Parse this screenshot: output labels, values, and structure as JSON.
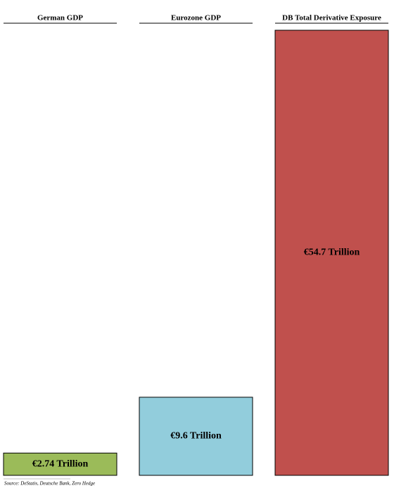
{
  "chart_data": {
    "type": "bar",
    "categories": [
      "German GDP",
      "Eurozone GDP",
      "DB Total Derivative Exposure"
    ],
    "values": [
      2.74,
      9.6,
      54.7
    ],
    "value_labels": [
      "€2.74 Trillion",
      "€9.6 Trillion",
      "€54.7 Trillion"
    ],
    "colors": [
      "#9bbb59",
      "#92cddc",
      "#c0504d"
    ],
    "source": "Source: DeStatis, Deutsche Bank, Zero Hedge"
  }
}
